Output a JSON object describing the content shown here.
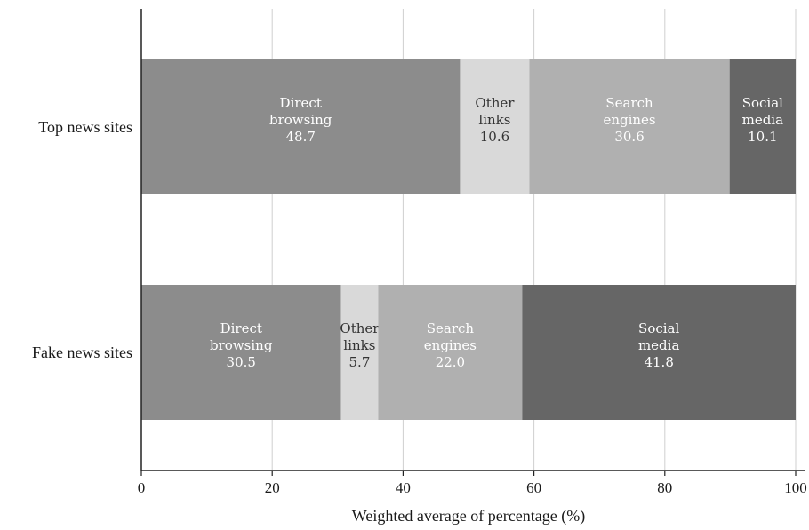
{
  "chart_data": {
    "type": "bar",
    "orientation": "horizontal",
    "stacked": true,
    "categories": [
      "Top news sites",
      "Fake news sites"
    ],
    "series": [
      {
        "name": "Direct browsing",
        "label_lines": [
          "Direct",
          "browsing"
        ],
        "values": [
          48.7,
          30.5
        ],
        "color": "#8c8c8c"
      },
      {
        "name": "Other links",
        "label_lines": [
          "Other",
          "links"
        ],
        "values": [
          10.6,
          5.7
        ],
        "color": "#d9d9d9"
      },
      {
        "name": "Search engines",
        "label_lines": [
          "Search",
          "engines"
        ],
        "values": [
          30.6,
          22.0
        ],
        "color": "#b0b0b0"
      },
      {
        "name": "Social media",
        "label_lines": [
          "Social",
          "media"
        ],
        "values": [
          10.1,
          41.8
        ],
        "color": "#666666"
      }
    ],
    "value_labels": [
      [
        "48.7",
        "30.5"
      ],
      [
        "10.6",
        "5.7"
      ],
      [
        "30.6",
        "22.0"
      ],
      [
        "10.1",
        "41.8"
      ]
    ],
    "xlabel": "Weighted average of percentage (%)",
    "xlim": [
      0,
      100
    ],
    "xticks": [
      0,
      20,
      40,
      60,
      80,
      100
    ],
    "xtick_labels": [
      "0",
      "20",
      "40",
      "60",
      "80",
      "100"
    ],
    "grid": "vertical",
    "legend": "none"
  }
}
